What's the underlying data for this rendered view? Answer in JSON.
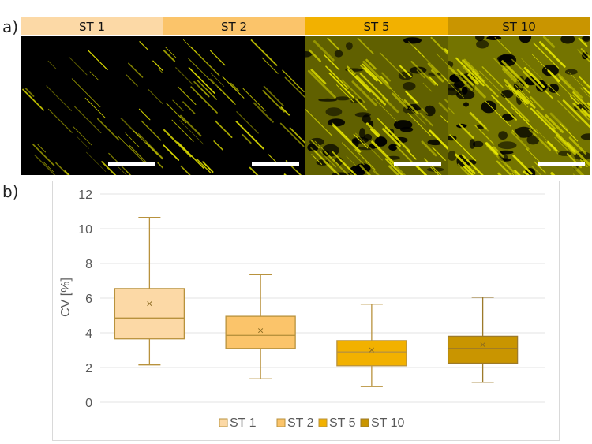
{
  "panel_a": {
    "label": "a)",
    "tabs": [
      {
        "label": "ST 1",
        "color": "#FCD9A6"
      },
      {
        "label": "ST 2",
        "color": "#FBC46A"
      },
      {
        "label": "ST 5",
        "color": "#F2B100"
      },
      {
        "label": "ST 10",
        "color": "#C99500"
      }
    ],
    "image_color": "#E8E800"
  },
  "panel_b": {
    "label": "b)"
  },
  "chart_data": {
    "type": "boxplot",
    "ylabel": "CV [%]",
    "ylim": [
      0,
      12
    ],
    "yticks": [
      0,
      2,
      4,
      6,
      8,
      10,
      12
    ],
    "grid": true,
    "legend_position": "bottom",
    "series": [
      {
        "name": "ST 1",
        "color": "#FCD9A6",
        "edge": "#B8923D",
        "whisker_low": 2.15,
        "q1": 3.65,
        "median": 4.85,
        "q3": 6.55,
        "whisker_high": 10.65,
        "mean": 5.7
      },
      {
        "name": "ST 2",
        "color": "#FBC46A",
        "edge": "#B8923D",
        "whisker_low": 1.35,
        "q1": 3.1,
        "median": 3.85,
        "q3": 4.95,
        "whisker_high": 7.35,
        "mean": 4.15
      },
      {
        "name": "ST 5",
        "color": "#F2B100",
        "edge": "#B8923D",
        "whisker_low": 0.9,
        "q1": 2.1,
        "median": 2.9,
        "q3": 3.55,
        "whisker_high": 5.65,
        "mean": 3.05
      },
      {
        "name": "ST 10",
        "color": "#C99500",
        "edge": "#9C7A2A",
        "whisker_low": 1.15,
        "q1": 2.25,
        "median": 3.1,
        "q3": 3.8,
        "whisker_high": 6.05,
        "mean": 3.35
      }
    ]
  }
}
